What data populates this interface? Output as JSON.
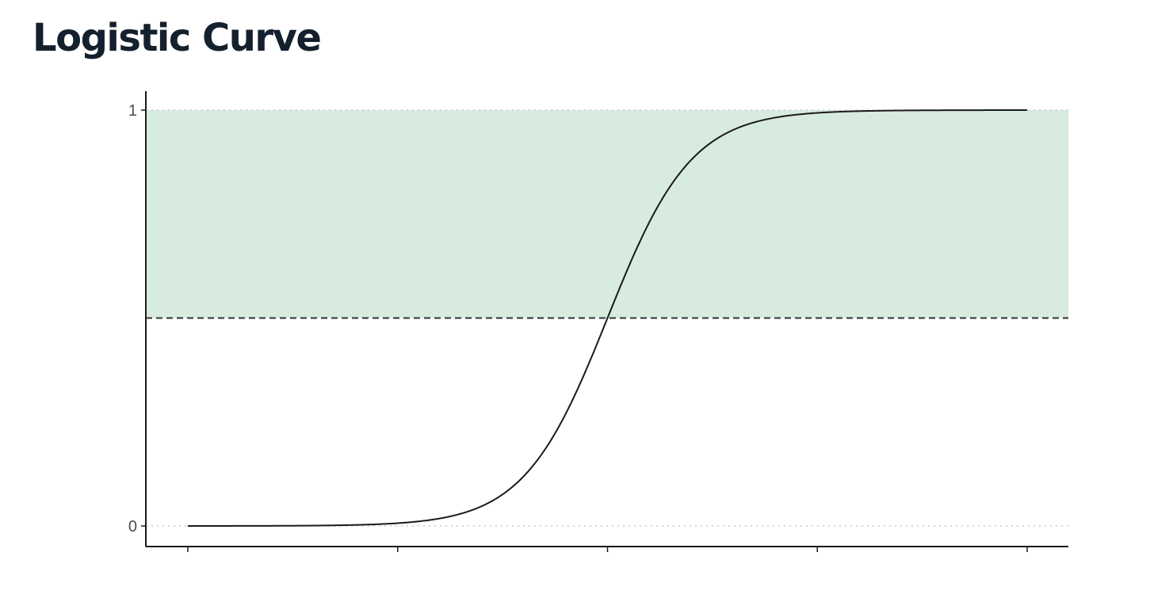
{
  "title": "Logistic Curve",
  "chart_data": {
    "type": "line",
    "title": "Logistic Curve",
    "xlabel": "",
    "ylabel": "",
    "xlim": [
      -10,
      10
    ],
    "ylim": [
      0,
      1
    ],
    "x_ticks": [
      -10,
      -5,
      0,
      5,
      10
    ],
    "y_ticks": [
      0,
      1
    ],
    "y_tick_labels": [
      "0",
      "1"
    ],
    "series": [
      {
        "function": "1 / (1 + exp(-x))",
        "color": "#1a1a1a",
        "x": [
          -10,
          -8,
          -6,
          -5,
          -4,
          -3,
          -2,
          -1,
          0,
          1,
          2,
          3,
          4,
          5,
          6,
          8,
          10
        ],
        "y": [
          5e-05,
          0.0003,
          0.0025,
          0.0067,
          0.018,
          0.047,
          0.119,
          0.269,
          0.5,
          0.731,
          0.881,
          0.953,
          0.982,
          0.9933,
          0.9975,
          0.9997,
          0.99995
        ]
      }
    ],
    "threshold": {
      "y": 0.5,
      "style": "dashed",
      "color": "#333333"
    },
    "shaded_region": {
      "y_from": 0.5,
      "y_to": 1,
      "color": "#d7ebdf"
    },
    "reference_lines": {
      "y": [
        0,
        1
      ],
      "style": "dotted",
      "color": "#c8c8c8"
    },
    "grid": false,
    "legend": "none"
  }
}
